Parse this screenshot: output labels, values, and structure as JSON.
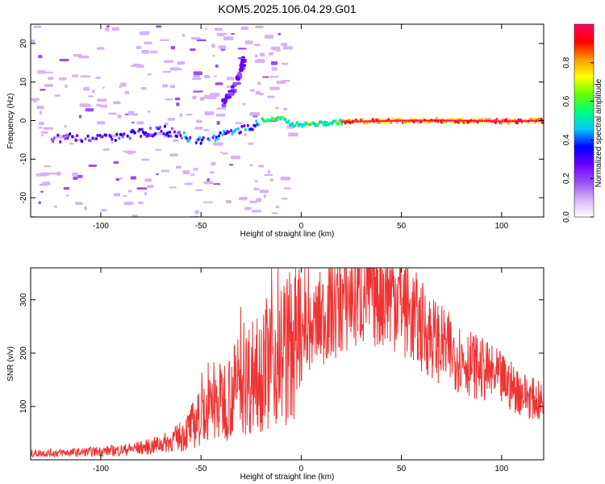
{
  "figure": {
    "title": "KOM5.2025.106.04.29.G01"
  },
  "chart_data": [
    {
      "type": "heatmap",
      "xlabel": "Height of straight line (km)",
      "ylabel": "Frequency (Hz)",
      "xlim": [
        -135,
        121
      ],
      "ylim": [
        -25,
        25
      ],
      "xticks": [
        -100,
        -50,
        0,
        50,
        100
      ],
      "yticks": [
        -20,
        -10,
        0,
        10,
        20
      ],
      "colorbar": {
        "label": "Normalized spectral amplitude",
        "range": [
          0,
          1
        ],
        "ticks": [
          0.0,
          0.2,
          0.4,
          0.6,
          0.8
        ],
        "colors": [
          "#ffffff",
          "#d6b3f5",
          "#9a4ff0",
          "#6a00ff",
          "#0000ff",
          "#00c8ff",
          "#00ff80",
          "#66ff00",
          "#ffff00",
          "#ff9900",
          "#ff0000",
          "#ff0066"
        ]
      },
      "ridge": [
        {
          "x": -120,
          "y": -4.5
        },
        {
          "x": -100,
          "y": -5
        },
        {
          "x": -85,
          "y": -3.5
        },
        {
          "x": -70,
          "y": -2.5
        },
        {
          "x": -60,
          "y": -3.5
        },
        {
          "x": -55,
          "y": -5.5
        },
        {
          "x": -45,
          "y": -4.5
        },
        {
          "x": -35,
          "y": -3
        },
        {
          "x": -25,
          "y": -1.5
        },
        {
          "x": -20,
          "y": 0
        },
        {
          "x": -10,
          "y": 0.5
        },
        {
          "x": -5,
          "y": -1
        },
        {
          "x": 0,
          "y": -1
        },
        {
          "x": 10,
          "y": -0.8
        },
        {
          "x": 20,
          "y": -0.3
        },
        {
          "x": 50,
          "y": 0
        },
        {
          "x": 80,
          "y": 0
        },
        {
          "x": 100,
          "y": -0.2
        },
        {
          "x": 121,
          "y": 0
        }
      ],
      "branch": [
        {
          "x": -40,
          "y": 5
        },
        {
          "x": -36,
          "y": 8
        },
        {
          "x": -32,
          "y": 12
        },
        {
          "x": -30,
          "y": 16
        }
      ]
    },
    {
      "type": "line",
      "xlabel": "Height of straight line (km)",
      "ylabel": "SNR (v/v)",
      "xlim": [
        -135,
        121
      ],
      "ylim": [
        0,
        360
      ],
      "xticks": [
        -100,
        -50,
        0,
        50,
        100
      ],
      "yticks": [
        100,
        200,
        300
      ],
      "color": "#ee3333",
      "envelope": [
        {
          "x": -135,
          "y": 12
        },
        {
          "x": -110,
          "y": 14
        },
        {
          "x": -90,
          "y": 18
        },
        {
          "x": -75,
          "y": 25
        },
        {
          "x": -65,
          "y": 35
        },
        {
          "x": -58,
          "y": 50
        },
        {
          "x": -50,
          "y": 80
        },
        {
          "x": -40,
          "y": 110
        },
        {
          "x": -30,
          "y": 140
        },
        {
          "x": -20,
          "y": 175
        },
        {
          "x": -10,
          "y": 200
        },
        {
          "x": 0,
          "y": 225
        },
        {
          "x": 10,
          "y": 265
        },
        {
          "x": 20,
          "y": 295
        },
        {
          "x": 30,
          "y": 315
        },
        {
          "x": 40,
          "y": 320
        },
        {
          "x": 48,
          "y": 310
        },
        {
          "x": 55,
          "y": 270
        },
        {
          "x": 60,
          "y": 250
        },
        {
          "x": 70,
          "y": 215
        },
        {
          "x": 80,
          "y": 190
        },
        {
          "x": 90,
          "y": 170
        },
        {
          "x": 100,
          "y": 150
        },
        {
          "x": 110,
          "y": 125
        },
        {
          "x": 121,
          "y": 105
        }
      ]
    }
  ]
}
